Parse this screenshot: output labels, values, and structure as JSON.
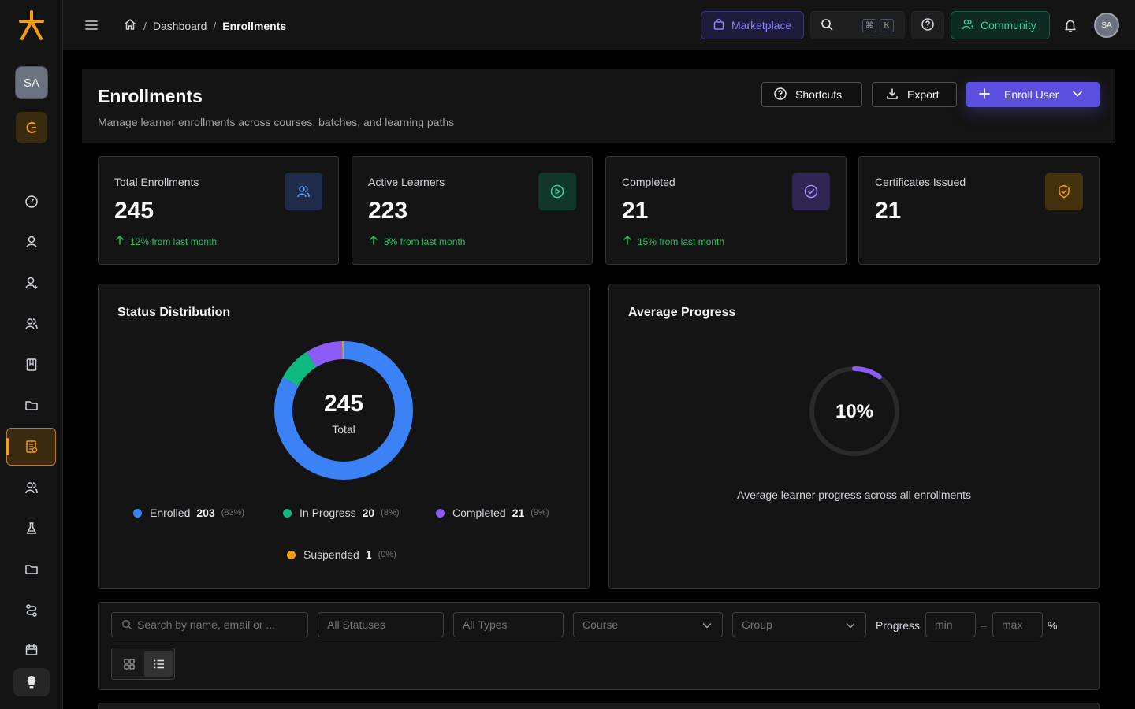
{
  "sidebar": {
    "user_initials": "SA",
    "nav_icons": [
      "dashboard-icon",
      "user-icon",
      "user-add-icon",
      "users-icon",
      "book-icon",
      "folder-icon",
      "enrollments-icon",
      "team-icon",
      "flask-icon",
      "folder-icon",
      "route-icon",
      "calendar-icon"
    ],
    "active_item": "enrollments-icon"
  },
  "topbar": {
    "breadcrumb": [
      "Dashboard",
      "Enrollments"
    ],
    "marketplace_label": "Marketplace",
    "search_shortcut": [
      "⌘",
      "K"
    ],
    "community_label": "Community",
    "user_initials": "SA"
  },
  "header": {
    "title": "Enrollments",
    "subtitle": "Manage learner enrollments across courses, batches, and learning paths",
    "shortcuts_label": "Shortcuts",
    "export_label": "Export",
    "enroll_label": "Enroll User"
  },
  "stats": [
    {
      "label": "Total Enrollments",
      "value": "245",
      "trend": "12% from last month",
      "icon": "users-icon",
      "accent": "#3b82f6"
    },
    {
      "label": "Active Learners",
      "value": "223",
      "trend": "8% from last month",
      "icon": "play-circle-icon",
      "accent": "#10b981"
    },
    {
      "label": "Completed",
      "value": "21",
      "trend": "15% from last month",
      "icon": "check-circle-icon",
      "accent": "#8b5cf6"
    },
    {
      "label": "Certificates Issued",
      "value": "21",
      "trend": "",
      "icon": "shield-check-icon",
      "accent": "#f59e0b"
    }
  ],
  "status_panel": {
    "title": "Status Distribution",
    "center_value": "245",
    "center_label": "Total"
  },
  "chart_data": {
    "type": "pie",
    "title": "Status Distribution",
    "total": 245,
    "series": [
      {
        "name": "Enrolled",
        "value": 203,
        "pct": "(83%)",
        "color": "#3b82f6"
      },
      {
        "name": "In Progress",
        "value": 20,
        "pct": "(8%)",
        "color": "#10b981"
      },
      {
        "name": "Completed",
        "value": 21,
        "pct": "(9%)",
        "color": "#8b5cf6"
      },
      {
        "name": "Suspended",
        "value": 1,
        "pct": "(0%)",
        "color": "#f59e0b"
      }
    ]
  },
  "progress_panel": {
    "title": "Average Progress",
    "value": 10,
    "value_label": "10%",
    "caption": "Average learner progress across all enrollments"
  },
  "filters": {
    "search_placeholder": "Search by name, email or ...",
    "status_placeholder": "All Statuses",
    "type_placeholder": "All Types",
    "course_placeholder": "Course",
    "group_placeholder": "Group",
    "progress_label": "Progress",
    "min_placeholder": "min",
    "max_placeholder": "max",
    "range_sep": "–",
    "unit": "%"
  },
  "colors": {
    "brand": "#f59e0b",
    "primary": "#5b4fe0"
  }
}
